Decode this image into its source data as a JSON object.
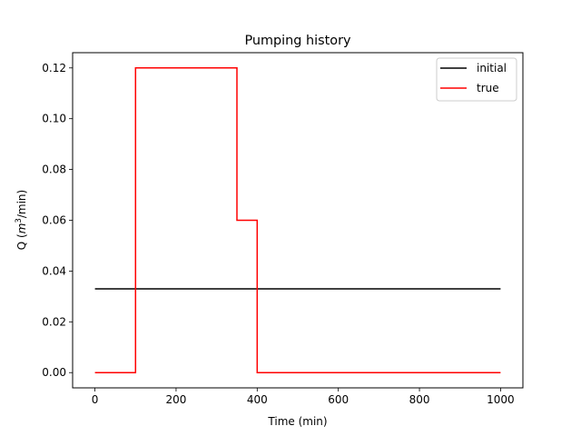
{
  "chart_data": {
    "type": "line",
    "title": "Pumping history",
    "xlabel": "Time (min)",
    "ylabel_prefix": "Q (",
    "ylabel_var": "m",
    "ylabel_exp": "3",
    "ylabel_suffix": "/min)",
    "xlim": [
      -55,
      1055
    ],
    "ylim": [
      -0.006,
      0.126
    ],
    "xticks": [
      0,
      200,
      400,
      600,
      800,
      1000
    ],
    "xtick_labels": [
      "0",
      "200",
      "400",
      "600",
      "800",
      "1000"
    ],
    "yticks": [
      0.0,
      0.02,
      0.04,
      0.06,
      0.08,
      0.1,
      0.12
    ],
    "ytick_labels": [
      "0.00",
      "0.02",
      "0.04",
      "0.06",
      "0.08",
      "0.10",
      "0.12"
    ],
    "grid": false,
    "legend_position": "top-right",
    "series": [
      {
        "name": "initial",
        "color": "#000000",
        "x": [
          0,
          1000
        ],
        "y": [
          0.033,
          0.033
        ]
      },
      {
        "name": "true",
        "color": "#ff0000",
        "x": [
          0,
          100,
          100,
          350,
          350,
          400,
          400,
          1000
        ],
        "y": [
          0.0,
          0.0,
          0.12,
          0.12,
          0.06,
          0.06,
          0.0,
          0.0
        ]
      }
    ]
  }
}
